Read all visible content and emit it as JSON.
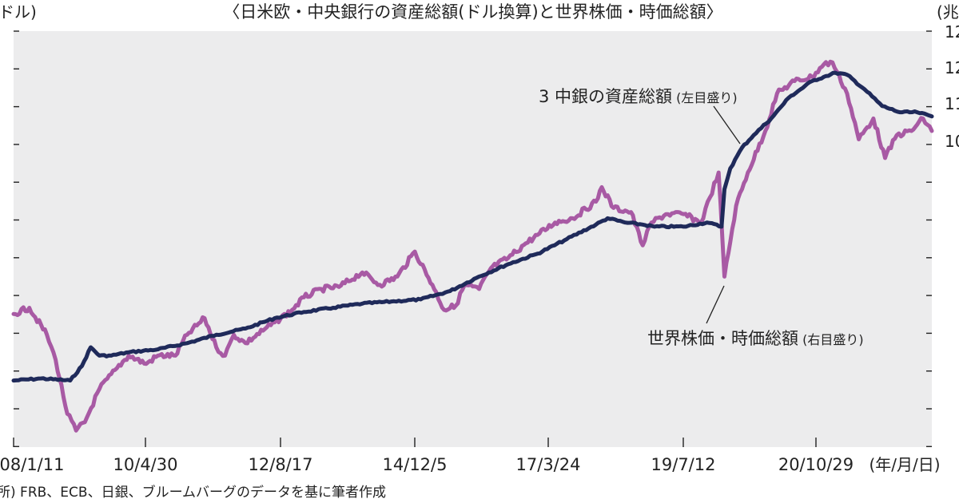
{
  "chart_data": {
    "type": "line",
    "title": "〈日米欧・中央銀行の資産総額(ドル換算)と世界株価・時価総額〉",
    "left_unit": "ドル)",
    "right_unit": "(兆",
    "x_tick_labels": [
      "08/1/11",
      "10/4/30",
      "12/8/17",
      "14/12/5",
      "17/3/24",
      "19/7/12",
      "20/10/29"
    ],
    "x_unit_label": "(年/月/日)",
    "right_tick_labels": [
      "12",
      "12",
      "11",
      "10"
    ],
    "source": "所) FRB、ECB、日銀、ブルームバーグのデータを基に筆者作成",
    "annotations": {
      "banks": {
        "text": "3 中銀の資産総額",
        "note": "(左目盛り)"
      },
      "stocks": {
        "text": "世界株価・時価総額",
        "note": "(右目盛り)"
      }
    },
    "x_range": [
      2008.03,
      2023.75
    ],
    "y_range": [
      0,
      100
    ],
    "series": [
      {
        "name": "3 中銀の資産総額",
        "axis": "left",
        "color": "#1f2a5a",
        "x": [
          2008.03,
          2008.5,
          2009.0,
          2009.2,
          2009.35,
          2009.5,
          2009.7,
          2010.0,
          2010.5,
          2011.0,
          2011.5,
          2012.0,
          2012.5,
          2013.0,
          2013.5,
          2014.0,
          2014.5,
          2015.0,
          2015.5,
          2016.0,
          2016.5,
          2017.0,
          2017.5,
          2018.0,
          2018.2,
          2018.5,
          2018.8,
          2019.0,
          2019.5,
          2019.9,
          2020.15,
          2020.2,
          2020.3,
          2020.5,
          2020.7,
          2021.0,
          2021.3,
          2021.7,
          2021.9,
          2022.1,
          2022.3,
          2022.6,
          2022.9,
          2023.2,
          2023.5,
          2023.75
        ],
        "y": [
          16.0,
          16.5,
          16.0,
          19.5,
          24.0,
          22.0,
          22.0,
          22.8,
          23.5,
          25.0,
          27.0,
          28.5,
          31.0,
          32.5,
          33.5,
          34.5,
          35.0,
          35.5,
          37.5,
          41.0,
          44.0,
          46.5,
          50.0,
          53.5,
          55.0,
          54.0,
          53.5,
          53.0,
          53.0,
          54.0,
          53.0,
          62.0,
          67.0,
          72.0,
          75.0,
          79.0,
          84.0,
          88.0,
          89.0,
          90.0,
          89.5,
          86.0,
          82.0,
          80.5,
          80.5,
          79.5
        ]
      },
      {
        "name": "世界株価・時価総額",
        "axis": "right",
        "color": "#a85aa4",
        "x": [
          2008.03,
          2008.3,
          2008.6,
          2008.75,
          2008.95,
          2009.1,
          2009.25,
          2009.5,
          2009.8,
          2010.0,
          2010.3,
          2010.5,
          2010.8,
          2011.0,
          2011.3,
          2011.5,
          2011.65,
          2011.8,
          2012.0,
          2012.3,
          2012.5,
          2012.8,
          2013.0,
          2013.3,
          2013.6,
          2014.0,
          2014.3,
          2014.6,
          2014.9,
          2015.2,
          2015.4,
          2015.6,
          2015.75,
          2016.0,
          2016.2,
          2016.5,
          2016.8,
          2017.0,
          2017.3,
          2017.6,
          2018.0,
          2018.1,
          2018.3,
          2018.6,
          2018.8,
          2018.95,
          2019.2,
          2019.5,
          2019.8,
          2019.95,
          2020.1,
          2020.2,
          2020.4,
          2020.6,
          2020.9,
          2021.1,
          2021.4,
          2021.7,
          2021.9,
          2022.05,
          2022.3,
          2022.5,
          2022.75,
          2022.95,
          2023.15,
          2023.4,
          2023.6,
          2023.75
        ],
        "y": [
          32.0,
          33.5,
          27.0,
          21.0,
          8.0,
          4.0,
          6.0,
          14.0,
          19.0,
          22.0,
          20.0,
          22.0,
          22.0,
          27.0,
          31.0,
          24.0,
          22.0,
          27.0,
          25.0,
          28.0,
          30.0,
          33.0,
          36.0,
          38.0,
          38.5,
          42.0,
          39.0,
          41.0,
          47.0,
          39.0,
          33.0,
          34.0,
          39.0,
          38.0,
          43.0,
          45.5,
          49.0,
          51.0,
          54.0,
          55.0,
          59.0,
          62.5,
          57.5,
          56.5,
          48.5,
          54.0,
          56.0,
          56.0,
          54.0,
          60.0,
          66.0,
          41.0,
          58.0,
          66.0,
          76.0,
          85.0,
          88.0,
          89.0,
          92.0,
          92.5,
          85.0,
          74.0,
          79.0,
          69.5,
          75.0,
          76.0,
          79.0,
          76.0
        ]
      }
    ],
    "grid": false
  }
}
